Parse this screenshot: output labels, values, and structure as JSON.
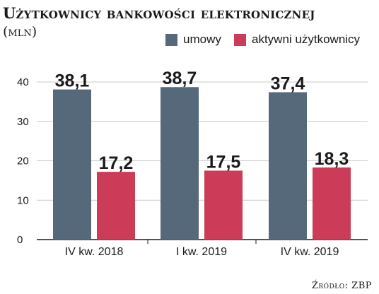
{
  "header": {
    "title": "Użytkownicy bankowości elektronicznej",
    "subtitle": "(mln)"
  },
  "legend": {
    "items": [
      {
        "label": "umowy",
        "color": "#56697a"
      },
      {
        "label": "aktywni użytkownicy",
        "color": "#cc3b57"
      }
    ]
  },
  "source": "Źródło: ZBP",
  "chart_data": {
    "type": "bar",
    "title": "Użytkownicy bankowości elektronicznej",
    "subtitle": "(mln)",
    "categories": [
      "IV kw. 2018",
      "I kw. 2019",
      "IV kw. 2019"
    ],
    "series": [
      {
        "name": "umowy",
        "color": "#56697a",
        "values": [
          38.1,
          38.7,
          37.4
        ],
        "labels": [
          "38,1",
          "38,7",
          "37,4"
        ]
      },
      {
        "name": "aktywni użytkownicy",
        "color": "#cc3b57",
        "values": [
          17.2,
          17.5,
          18.3
        ],
        "labels": [
          "17,2",
          "17,5",
          "18,3"
        ]
      }
    ],
    "yticks": [
      "0",
      "10",
      "20",
      "30",
      "40"
    ],
    "ylim": [
      0,
      40
    ],
    "grid": true,
    "legend_position": "top-right"
  }
}
